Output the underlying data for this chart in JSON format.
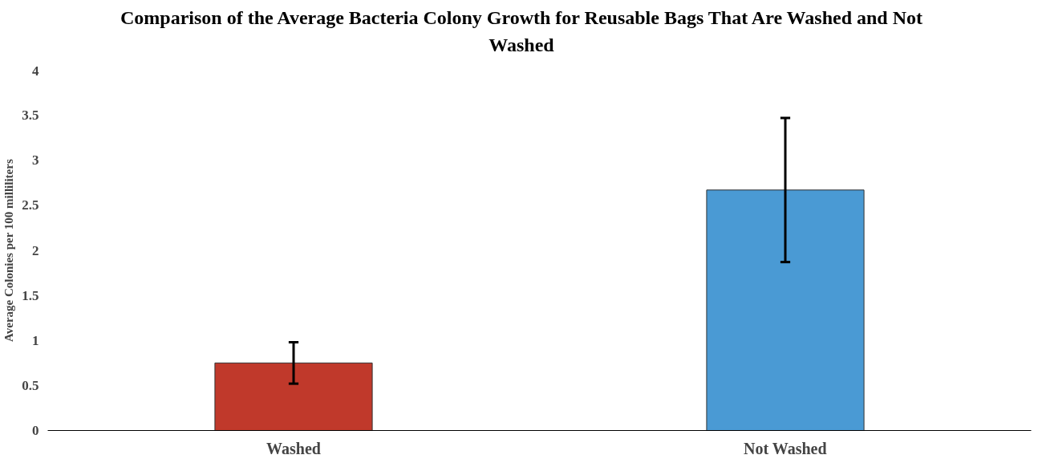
{
  "chart_data": {
    "type": "bar",
    "title": "Comparison of the Average Bacteria Colony Growth for Reusable Bags That Are Washed and Not Washed",
    "ylabel": "Average Colonies per 100 milliliters",
    "categories": [
      "Washed",
      "Not Washed"
    ],
    "values": [
      0.75,
      2.67
    ],
    "colors": [
      "#c0392b",
      "#4a9ad4"
    ],
    "errors": [
      0.23,
      0.8
    ],
    "ylim": [
      0,
      4
    ],
    "yticks": [
      0,
      0.5,
      1,
      1.5,
      2,
      2.5,
      3,
      3.5,
      4
    ],
    "grid": false
  }
}
